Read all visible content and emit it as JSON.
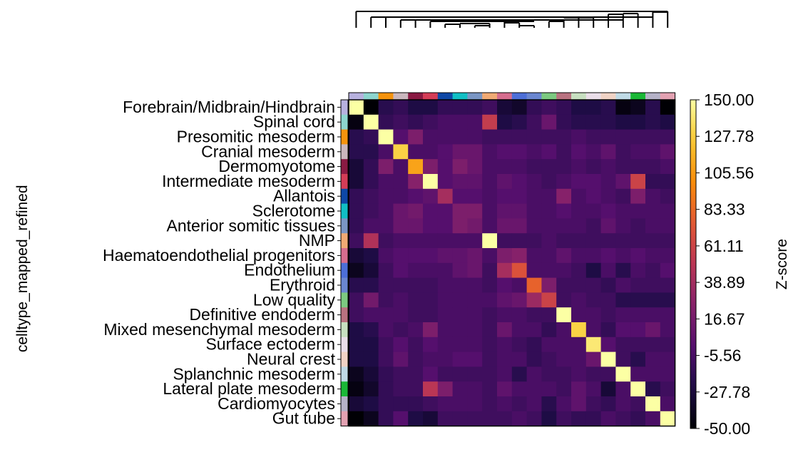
{
  "chart_data": {
    "type": "heatmap",
    "title": "",
    "ylabel": "celltype_mapped_refined",
    "colorbar_label": "Z-score",
    "colorbar_ticks": [
      "150.00",
      "127.78",
      "105.56",
      "83.33",
      "61.11",
      "38.89",
      "16.67",
      "-5.56",
      "-27.78",
      "-50.00"
    ],
    "vmin": -50,
    "vmax": 150,
    "colormap": "inferno",
    "rows": [
      "Forebrain/Midbrain/Hindbrain",
      "Spinal cord",
      "Presomitic mesoderm",
      "Cranial mesoderm",
      "Dermomyotome",
      "Intermediate mesoderm",
      "Allantois",
      "Sclerotome",
      "Anterior somitic tissues",
      "NMP",
      "Haematoendothelial progenitors",
      "Endothelium",
      "Erythroid",
      "Low quality",
      "Definitive endoderm",
      "Mixed mesenchymal mesoderm",
      "Surface ectoderm",
      "Neural crest",
      "Splanchnic mesoderm",
      "Lateral plate mesoderm",
      "Cardiomyocytes",
      "Gut tube"
    ],
    "group_colors": [
      "#b7b1de",
      "#8dd5ce",
      "#f5930d",
      "#cab7bd",
      "#8a1a43",
      "#d43d57",
      "#0e48a6",
      "#11bfc4",
      "#7a96c4",
      "#f0aa74",
      "#d66d8e",
      "#4d6fd8",
      "#6a86d0",
      "#7cc980",
      "#b97280",
      "#c7dfc0",
      "#eadee9",
      "#f0d3c5",
      "#c0dbe6",
      "#1ab836",
      "#b5b2c7",
      "#e3a2b2"
    ],
    "values": [
      [
        150,
        -50,
        -20,
        -15,
        -25,
        -25,
        -15,
        -15,
        -15,
        -10,
        -30,
        -35,
        -15,
        -10,
        -15,
        -25,
        -25,
        -20,
        -45,
        -40,
        -20,
        -50
      ],
      [
        -45,
        150,
        -15,
        -10,
        -15,
        -10,
        -5,
        -5,
        -5,
        55,
        -25,
        -20,
        -10,
        10,
        -15,
        -20,
        -20,
        -20,
        -25,
        -25,
        -20,
        -25
      ],
      [
        -20,
        -15,
        150,
        0,
        20,
        -5,
        -5,
        -5,
        -5,
        -10,
        -10,
        -10,
        -10,
        -10,
        -10,
        -5,
        -10,
        -10,
        -10,
        -10,
        -10,
        -10
      ],
      [
        -20,
        -20,
        -5,
        130,
        -5,
        -5,
        0,
        10,
        10,
        -5,
        0,
        0,
        -5,
        0,
        -10,
        0,
        -5,
        5,
        -10,
        -5,
        -5,
        5
      ],
      [
        -30,
        -15,
        20,
        -5,
        110,
        20,
        0,
        20,
        10,
        -5,
        -5,
        -5,
        -10,
        -10,
        -10,
        -5,
        -10,
        -5,
        -10,
        -10,
        -10,
        -5
      ],
      [
        -30,
        -15,
        -5,
        -5,
        25,
        150,
        0,
        5,
        5,
        -5,
        5,
        0,
        -5,
        -10,
        -5,
        0,
        0,
        -5,
        5,
        60,
        -15,
        -15
      ],
      [
        -15,
        -10,
        -5,
        -5,
        0,
        5,
        40,
        0,
        0,
        -5,
        0,
        0,
        -5,
        -5,
        25,
        -5,
        0,
        -5,
        -10,
        20,
        -5,
        -10
      ],
      [
        -15,
        -10,
        -5,
        10,
        15,
        0,
        0,
        20,
        20,
        -5,
        5,
        5,
        -5,
        -5,
        0,
        -5,
        -5,
        0,
        -5,
        -5,
        -5,
        -5
      ],
      [
        -15,
        -5,
        -5,
        10,
        10,
        0,
        0,
        20,
        15,
        -5,
        10,
        10,
        -5,
        -5,
        -5,
        -5,
        -10,
        5,
        -5,
        -10,
        -5,
        -5
      ],
      [
        -10,
        45,
        -10,
        -5,
        -5,
        -5,
        -5,
        -5,
        -5,
        150,
        -10,
        -10,
        -10,
        -5,
        -10,
        -10,
        -10,
        -10,
        -10,
        -10,
        -10,
        -10
      ],
      [
        -30,
        -25,
        -5,
        0,
        0,
        0,
        5,
        5,
        10,
        -5,
        20,
        25,
        -5,
        -5,
        5,
        -5,
        -5,
        0,
        -5,
        0,
        -5,
        -5
      ],
      [
        -40,
        -30,
        -10,
        0,
        -5,
        -5,
        -5,
        5,
        10,
        -10,
        40,
        70,
        -5,
        -5,
        -5,
        -10,
        -25,
        -5,
        -20,
        -5,
        -10,
        0
      ],
      [
        -20,
        -20,
        -10,
        -10,
        -10,
        -10,
        -5,
        -5,
        -5,
        -10,
        0,
        -5,
        80,
        20,
        -10,
        -10,
        -10,
        -15,
        -5,
        -10,
        -10,
        -10
      ],
      [
        -10,
        15,
        -10,
        -5,
        -10,
        -10,
        -5,
        -5,
        -5,
        -5,
        5,
        10,
        35,
        60,
        -10,
        -5,
        -10,
        -10,
        -20,
        -20,
        -20,
        -20
      ],
      [
        -10,
        -5,
        -5,
        -5,
        -10,
        -10,
        -5,
        -5,
        -5,
        -10,
        -5,
        -5,
        -10,
        -10,
        150,
        -5,
        -5,
        -10,
        -5,
        -5,
        -5,
        -5
      ],
      [
        -25,
        -20,
        -5,
        -10,
        -5,
        20,
        -5,
        -5,
        -5,
        -10,
        10,
        -5,
        -5,
        -15,
        -5,
        130,
        -5,
        -15,
        0,
        0,
        10,
        -5
      ],
      [
        -25,
        -25,
        -10,
        0,
        -10,
        0,
        -5,
        -5,
        -5,
        -10,
        -5,
        -10,
        -15,
        -5,
        -5,
        -5,
        140,
        0,
        -10,
        -10,
        -10,
        -10
      ],
      [
        -25,
        -25,
        -10,
        5,
        -10,
        -5,
        -5,
        0,
        0,
        -10,
        -5,
        -5,
        -15,
        -10,
        -5,
        -5,
        10,
        150,
        -10,
        -20,
        -5,
        -5
      ],
      [
        -40,
        -30,
        -15,
        -10,
        -10,
        0,
        -10,
        -10,
        -10,
        -10,
        -5,
        -20,
        -5,
        -10,
        -10,
        -5,
        -10,
        -10,
        150,
        -5,
        -5,
        -5
      ],
      [
        -45,
        -35,
        -15,
        -10,
        -10,
        50,
        20,
        -5,
        -5,
        -10,
        5,
        -5,
        -5,
        -5,
        -10,
        5,
        -5,
        -30,
        -5,
        150,
        -20,
        -10
      ],
      [
        -30,
        -25,
        -15,
        -15,
        -15,
        -10,
        -5,
        -5,
        -5,
        -10,
        -5,
        -10,
        -5,
        -20,
        -5,
        5,
        -10,
        -15,
        -5,
        -10,
        150,
        -5
      ],
      [
        -50,
        -40,
        -15,
        0,
        -25,
        -30,
        -10,
        -10,
        -10,
        -10,
        -10,
        -5,
        -10,
        -25,
        -10,
        -15,
        -15,
        -5,
        -10,
        -15,
        -5,
        150
      ]
    ]
  }
}
